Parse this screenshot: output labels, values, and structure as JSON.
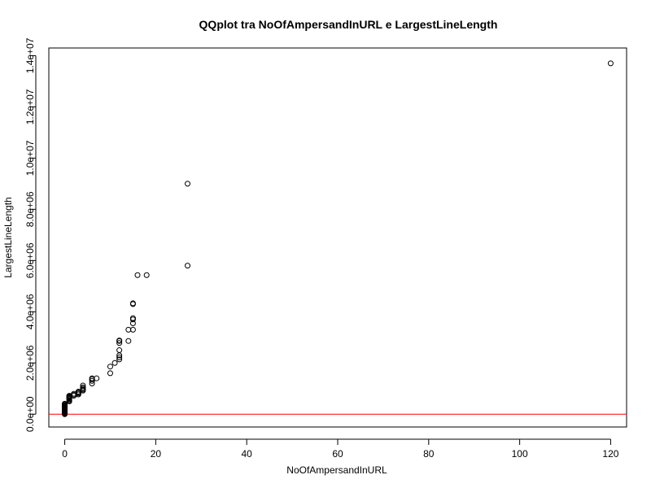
{
  "chart_data": {
    "type": "scatter",
    "title": "QQplot tra NoOfAmpersandInURL e LargestLineLength",
    "xlabel": "NoOfAmpersandInURL",
    "ylabel": "LargestLineLength",
    "xlim": [
      -3.5,
      123.5
    ],
    "ylim": [
      -500000,
      14300000
    ],
    "xticks": [
      0,
      20,
      40,
      60,
      80,
      100,
      120
    ],
    "xtick_labels": [
      "0",
      "20",
      "40",
      "60",
      "80",
      "100",
      "120"
    ],
    "yticks": [
      0,
      2000000,
      4000000,
      6000000,
      8000000,
      10000000,
      12000000,
      14000000
    ],
    "ytick_labels": [
      "0.0e+00",
      "2.0e+06",
      "4.0e+06",
      "6.0e+06",
      "8.0e+06",
      "1.0e+07",
      "1.2e+07",
      "1.4e+07"
    ],
    "grid": false,
    "reference_line": {
      "y": 0,
      "color": "#ff0000"
    },
    "point_style": {
      "shape": "open-circle",
      "color": "#000000"
    },
    "points": {
      "x": [
        0,
        0,
        0,
        0,
        0,
        0,
        0,
        0,
        0,
        0,
        0,
        0,
        0,
        0,
        0,
        0,
        0,
        0,
        0,
        0,
        0,
        1,
        1,
        1,
        1,
        1,
        1,
        1,
        1,
        1,
        2,
        2,
        2,
        3,
        3,
        3,
        3,
        4,
        4,
        4,
        4,
        4,
        6,
        6,
        6,
        6,
        7,
        10,
        10,
        11,
        12,
        12,
        12,
        12,
        12,
        12,
        12,
        14,
        14,
        15,
        15,
        15,
        15,
        15,
        15,
        16,
        18,
        27,
        27,
        120
      ],
      "y": [
        0,
        15000,
        30000,
        50000,
        70000,
        90000,
        110000,
        130000,
        150000,
        170000,
        190000,
        210000,
        230000,
        250000,
        270000,
        290000,
        310000,
        330000,
        350000,
        380000,
        410000,
        500000,
        540000,
        580000,
        610000,
        640000,
        660000,
        680000,
        700000,
        720000,
        720000,
        760000,
        800000,
        770000,
        810000,
        850000,
        880000,
        920000,
        960000,
        1000000,
        1050000,
        1120000,
        1200000,
        1300000,
        1360000,
        1400000,
        1400000,
        1600000,
        1860000,
        2000000,
        2140000,
        2220000,
        2300000,
        2500000,
        2780000,
        2860000,
        2880000,
        2860000,
        3300000,
        3300000,
        3550000,
        3700000,
        3750000,
        4300000,
        4330000,
        5430000,
        5430000,
        5800000,
        9000000,
        13700000
      ]
    }
  }
}
